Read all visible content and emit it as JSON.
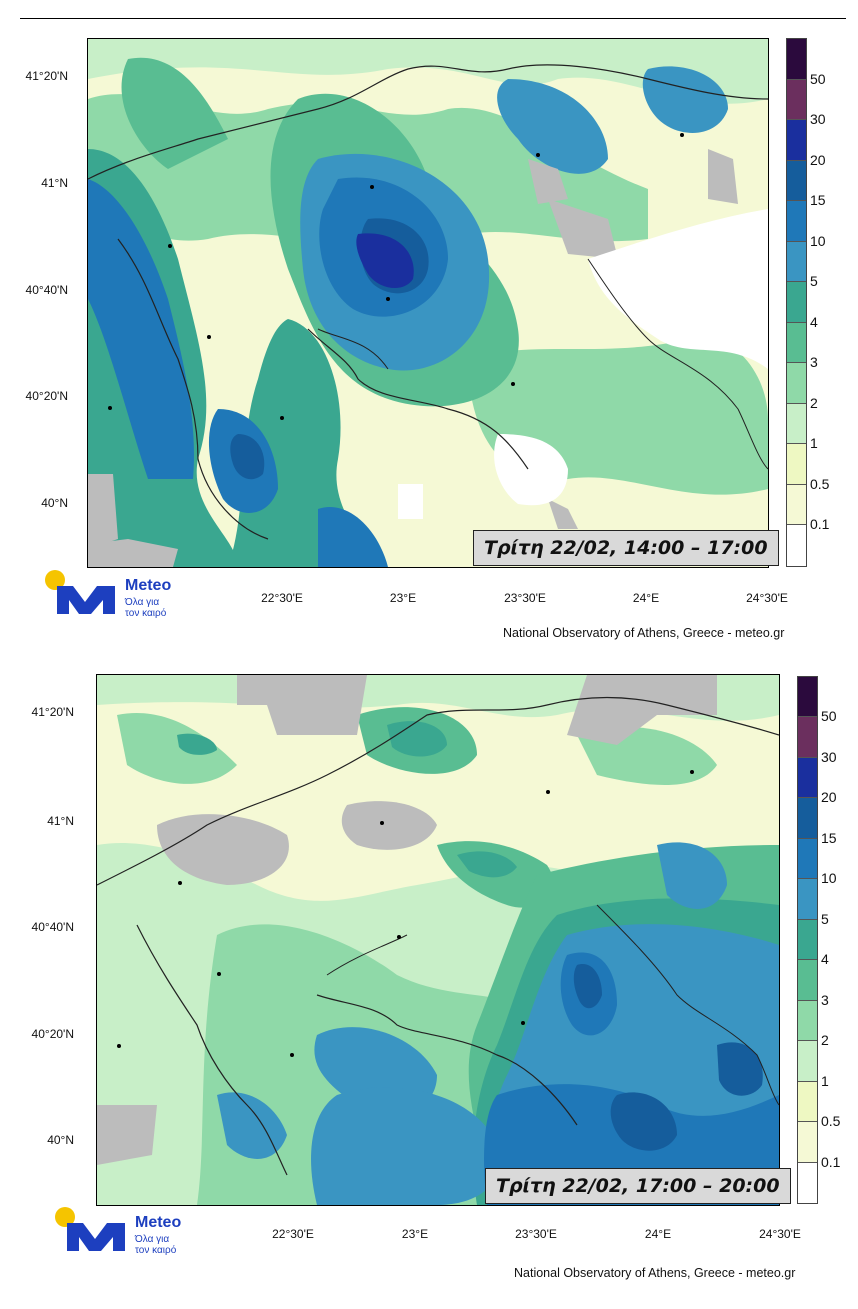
{
  "panels": [
    {
      "time_label": "Τρίτη 22/02, 14:00 – 17:00",
      "lat_labels": [
        "41°20'N",
        "41°N",
        "40°40'N",
        "40°20'N",
        "40°N"
      ],
      "lon_labels": [
        "22°30'E",
        "23°E",
        "23°30'E",
        "24°E",
        "24°30'E"
      ],
      "credit": "National Observatory of Athens, Greece - meteo.gr"
    },
    {
      "time_label": "Τρίτη 22/02, 17:00 – 20:00",
      "lat_labels": [
        "41°20'N",
        "41°N",
        "40°40'N",
        "40°20'N",
        "40°N"
      ],
      "lon_labels": [
        "22°30'E",
        "23°E",
        "23°30'E",
        "24°E",
        "24°30'E"
      ],
      "credit": "National Observatory of Athens, Greece - meteo.gr"
    }
  ],
  "legend": {
    "labels": [
      "50",
      "30",
      "20",
      "15",
      "10",
      "5",
      "4",
      "3",
      "2",
      "1",
      "0.5",
      "0.1"
    ],
    "colors": [
      "#2b0a3d",
      "#6b2f5e",
      "#1a2f9e",
      "#155d9c",
      "#1f78b8",
      "#3a95c2",
      "#3aa790",
      "#59bd92",
      "#8fd9a8",
      "#c8efc8",
      "#eef8c2",
      "#f5f9d5",
      "#ffffff"
    ]
  },
  "logo": {
    "name": "Meteo",
    "tagline_1": "Όλα για",
    "tagline_2": "τον καιρό"
  }
}
